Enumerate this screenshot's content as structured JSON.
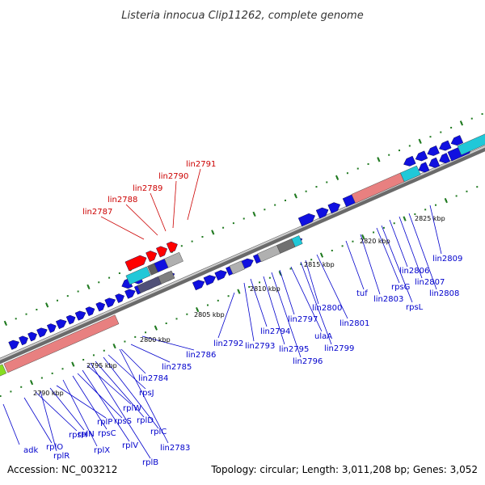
{
  "title": "Listeria innocua Clip11262, complete genome",
  "footer": {
    "accession": "Accession: NC_003212",
    "topology": "Topology: circular; Length: 3,011,208 bp; Genes: 3,052"
  },
  "colors": {
    "backbone": "#8f8f8f",
    "forward_gene": "#1010e0",
    "reverse_gene": "#1010e0",
    "rrna": "#e88080",
    "trna": "#20c8d8",
    "pseudo": "#b0b0b0",
    "dark_gene": "#505078",
    "highlight": "#ff0000",
    "label_blue": "#0000cc",
    "label_red": "#cc0000",
    "dots": "#207a20"
  },
  "kbp_ticks": [
    "2790 kbp",
    "2795 kbp",
    "2800 kbp",
    "2805 kbp",
    "2810 kbp",
    "2815 kbp",
    "2820 kbp",
    "2825 kbp"
  ],
  "labels_red": [
    "lin2787",
    "lin2788",
    "lin2789",
    "lin2790",
    "lin2791"
  ],
  "labels_blue": [
    "adk",
    "rplO",
    "rpsH",
    "rplR",
    "rplP",
    "rplN",
    "rplX",
    "rpsS",
    "rpsC",
    "rplV",
    "rplW",
    "rplD",
    "rplC",
    "rplB",
    "rpsJ",
    "lin2783",
    "lin2784",
    "lin2785",
    "lin2786",
    "lin2792",
    "lin2793",
    "lin2794",
    "lin2795",
    "lin2796",
    "lin2797",
    "ulaA",
    "lin2799",
    "lin2800",
    "lin2801",
    "tuf",
    "lin2803",
    "rpsG",
    "rpsL",
    "lin2806",
    "lin2807",
    "lin2808",
    "lin2809"
  ]
}
